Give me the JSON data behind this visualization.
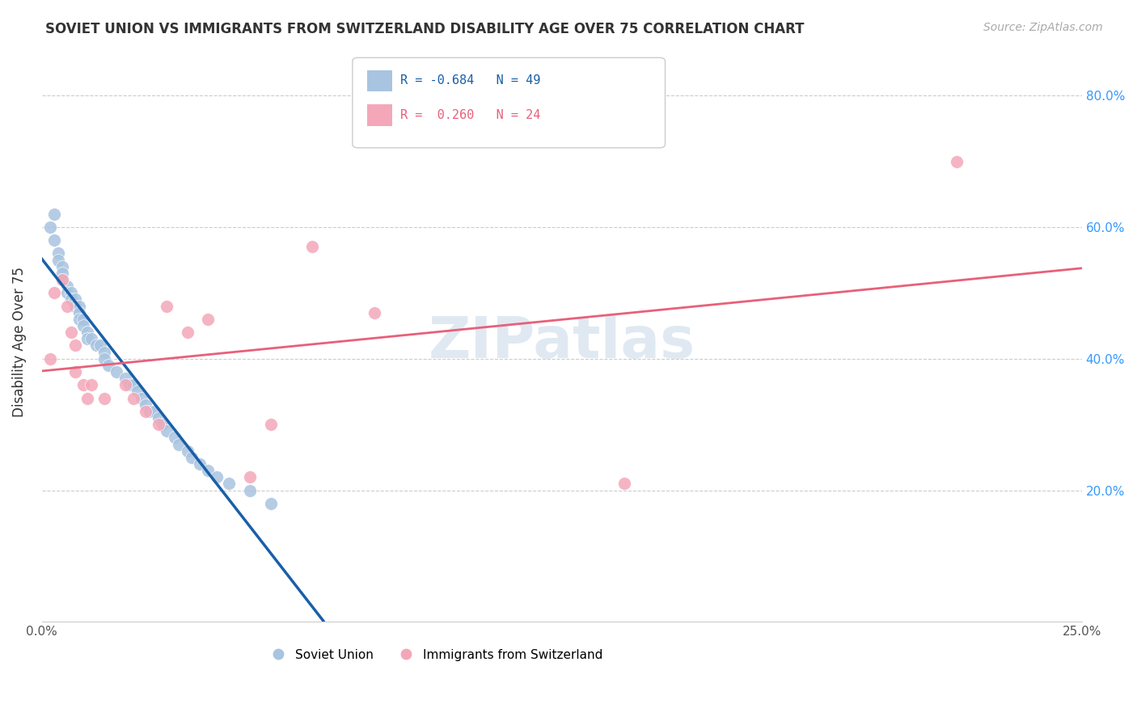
{
  "title": "SOVIET UNION VS IMMIGRANTS FROM SWITZERLAND DISABILITY AGE OVER 75 CORRELATION CHART",
  "source": "Source: ZipAtlas.com",
  "ylabel": "Disability Age Over 75",
  "xlim": [
    0.0,
    0.25
  ],
  "ylim": [
    0.0,
    0.85
  ],
  "xticks": [
    0.0,
    0.05,
    0.1,
    0.15,
    0.2,
    0.25
  ],
  "xticklabels": [
    "0.0%",
    "",
    "",
    "",
    "",
    "25.0%"
  ],
  "yticks_right": [
    0.2,
    0.4,
    0.6,
    0.8
  ],
  "ytick_labels_right": [
    "20.0%",
    "40.0%",
    "60.0%",
    "80.0%"
  ],
  "soviet_color": "#a8c4e0",
  "swiss_color": "#f4a7b9",
  "soviet_line_color": "#1a5fa8",
  "swiss_line_color": "#e8607a",
  "watermark": "ZIPatlas",
  "soviet_points_x": [
    0.002,
    0.003,
    0.003,
    0.004,
    0.004,
    0.005,
    0.005,
    0.005,
    0.006,
    0.006,
    0.007,
    0.007,
    0.008,
    0.008,
    0.009,
    0.009,
    0.009,
    0.01,
    0.01,
    0.011,
    0.011,
    0.012,
    0.013,
    0.014,
    0.015,
    0.015,
    0.016,
    0.018,
    0.02,
    0.021,
    0.022,
    0.023,
    0.024,
    0.025,
    0.026,
    0.027,
    0.028,
    0.029,
    0.03,
    0.032,
    0.033,
    0.035,
    0.036,
    0.038,
    0.04,
    0.042,
    0.045,
    0.05,
    0.055
  ],
  "soviet_points_y": [
    0.6,
    0.62,
    0.58,
    0.56,
    0.55,
    0.54,
    0.53,
    0.52,
    0.51,
    0.5,
    0.5,
    0.49,
    0.49,
    0.48,
    0.48,
    0.47,
    0.46,
    0.46,
    0.45,
    0.44,
    0.43,
    0.43,
    0.42,
    0.42,
    0.41,
    0.4,
    0.39,
    0.38,
    0.37,
    0.36,
    0.36,
    0.35,
    0.34,
    0.33,
    0.32,
    0.32,
    0.31,
    0.3,
    0.29,
    0.28,
    0.27,
    0.26,
    0.25,
    0.24,
    0.23,
    0.22,
    0.21,
    0.2,
    0.18
  ],
  "swiss_points_x": [
    0.002,
    0.003,
    0.005,
    0.006,
    0.007,
    0.008,
    0.008,
    0.01,
    0.011,
    0.012,
    0.015,
    0.02,
    0.022,
    0.025,
    0.028,
    0.03,
    0.035,
    0.04,
    0.05,
    0.055,
    0.065,
    0.08,
    0.14,
    0.22
  ],
  "swiss_points_y": [
    0.4,
    0.5,
    0.52,
    0.48,
    0.44,
    0.42,
    0.38,
    0.36,
    0.34,
    0.36,
    0.34,
    0.36,
    0.34,
    0.32,
    0.3,
    0.48,
    0.44,
    0.46,
    0.22,
    0.3,
    0.57,
    0.47,
    0.21,
    0.7
  ]
}
